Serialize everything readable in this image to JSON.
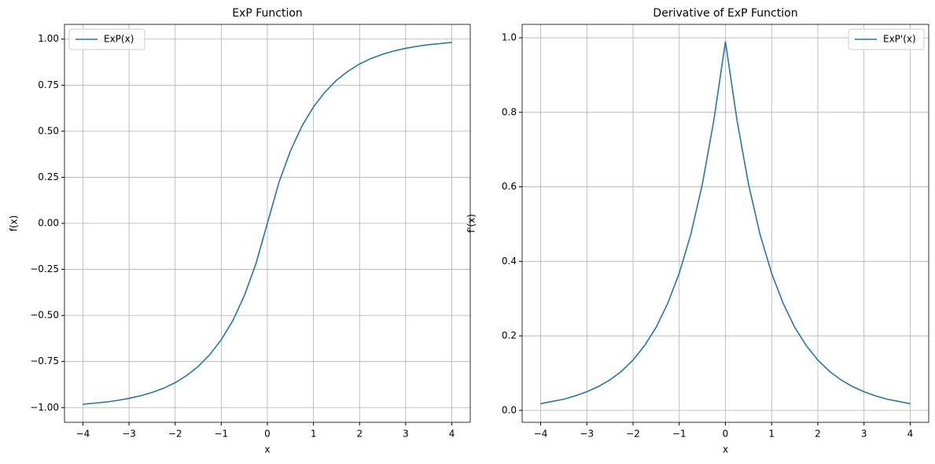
{
  "chart_data": [
    {
      "type": "line",
      "title": "ExP Function",
      "xlabel": "x",
      "ylabel": "f(x)",
      "x": [
        -4,
        -3.75,
        -3.5,
        -3.25,
        -3,
        -2.75,
        -2.5,
        -2.25,
        -2,
        -1.75,
        -1.5,
        -1.25,
        -1,
        -0.75,
        -0.5,
        -0.25,
        0,
        0.25,
        0.5,
        0.75,
        1,
        1.25,
        1.5,
        1.75,
        2,
        2.25,
        2.5,
        2.75,
        3,
        3.25,
        3.5,
        3.75,
        4
      ],
      "series": [
        {
          "name": "ExP(x)",
          "color": "#1f77b4",
          "values": [
            -0.982,
            -0.976,
            -0.97,
            -0.961,
            -0.95,
            -0.936,
            -0.918,
            -0.895,
            -0.865,
            -0.826,
            -0.777,
            -0.713,
            -0.632,
            -0.528,
            -0.393,
            -0.221,
            0,
            0.221,
            0.393,
            0.528,
            0.632,
            0.713,
            0.777,
            0.826,
            0.865,
            0.895,
            0.918,
            0.936,
            0.95,
            0.961,
            0.97,
            0.976,
            0.982
          ]
        }
      ],
      "xlim": [
        -4.4,
        4.4
      ],
      "ylim": [
        -1.08,
        1.08
      ],
      "xticks": [
        {
          "value": -4,
          "label": "−4"
        },
        {
          "value": -3,
          "label": "−3"
        },
        {
          "value": -2,
          "label": "−2"
        },
        {
          "value": -1,
          "label": "−1"
        },
        0,
        1,
        2,
        3,
        4
      ],
      "yticks": [
        {
          "value": -1,
          "label": "−1.00"
        },
        {
          "value": -0.75,
          "label": "−0.75"
        },
        {
          "value": -0.5,
          "label": "−0.50"
        },
        {
          "value": -0.25,
          "label": "−0.25"
        },
        {
          "value": 0,
          "label": "0.00"
        },
        {
          "value": 0.25,
          "label": "0.25"
        },
        {
          "value": 0.5,
          "label": "0.50"
        },
        {
          "value": 0.75,
          "label": "0.75"
        },
        {
          "value": 1,
          "label": "1.00"
        }
      ],
      "grid": true,
      "legend": "upper left"
    },
    {
      "type": "line",
      "title": "Derivative of ExP Function",
      "xlabel": "x",
      "ylabel": "f'(x)",
      "x": [
        -4,
        -3.75,
        -3.5,
        -3.25,
        -3,
        -2.75,
        -2.5,
        -2.25,
        -2,
        -1.75,
        -1.5,
        -1.25,
        -1,
        -0.75,
        -0.5,
        -0.25,
        0,
        0.25,
        0.5,
        0.75,
        1,
        1.25,
        1.5,
        1.75,
        2,
        2.25,
        2.5,
        2.75,
        3,
        3.25,
        3.5,
        3.75,
        4
      ],
      "series": [
        {
          "name": "ExP'(x)",
          "color": "#1f77b4",
          "values": [
            0.018,
            0.024,
            0.03,
            0.039,
            0.05,
            0.064,
            0.082,
            0.105,
            0.135,
            0.174,
            0.223,
            0.287,
            0.368,
            0.472,
            0.607,
            0.779,
            0.99,
            0.779,
            0.607,
            0.472,
            0.368,
            0.287,
            0.223,
            0.174,
            0.135,
            0.105,
            0.082,
            0.064,
            0.05,
            0.039,
            0.03,
            0.024,
            0.018
          ]
        }
      ],
      "xlim": [
        -4.4,
        4.4
      ],
      "ylim": [
        -0.032,
        1.036
      ],
      "xticks": [
        {
          "value": -4,
          "label": "−4"
        },
        {
          "value": -3,
          "label": "−3"
        },
        {
          "value": -2,
          "label": "−2"
        },
        {
          "value": -1,
          "label": "−1"
        },
        0,
        1,
        2,
        3,
        4
      ],
      "yticks": [
        {
          "value": 0,
          "label": "0.0"
        },
        {
          "value": 0.2,
          "label": "0.2"
        },
        {
          "value": 0.4,
          "label": "0.4"
        },
        {
          "value": 0.6,
          "label": "0.6"
        },
        {
          "value": 0.8,
          "label": "0.8"
        },
        {
          "value": 1,
          "label": "1.0"
        }
      ],
      "grid": true,
      "legend": "upper right"
    }
  ]
}
